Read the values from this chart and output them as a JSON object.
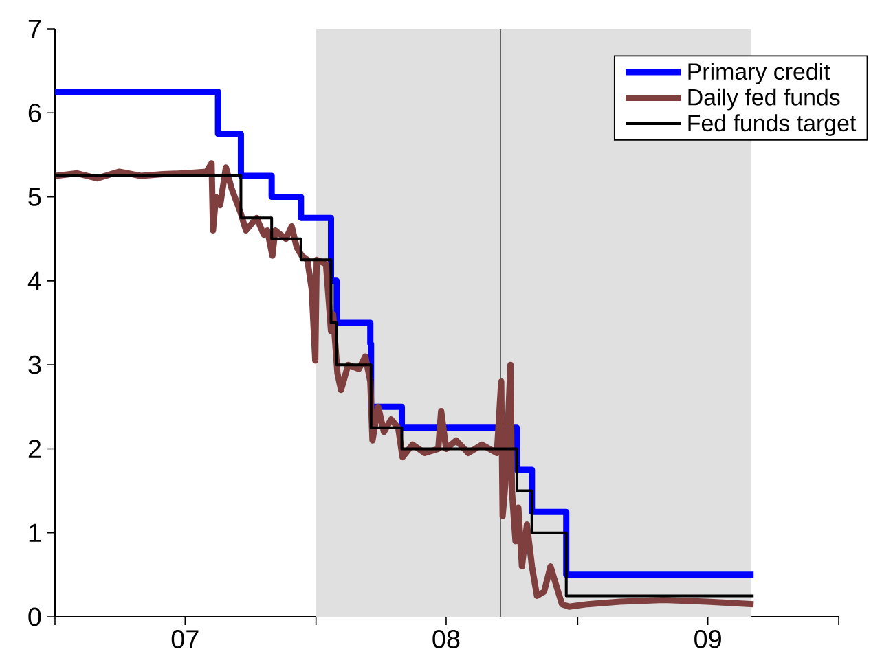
{
  "chart_data": {
    "type": "step",
    "xlim": [
      "2007-01-01",
      "2010-01-01"
    ],
    "xticks": [
      {
        "value": "2007-01-01",
        "label": null
      },
      {
        "value": "2007-07-02",
        "label": "07"
      },
      {
        "value": "2008-01-01",
        "label": null
      },
      {
        "value": "2008-07-01",
        "label": "08"
      },
      {
        "value": "2009-01-01",
        "label": null
      },
      {
        "value": "2009-07-02",
        "label": "09"
      },
      {
        "value": "2010-01-01",
        "label": null
      }
    ],
    "ylim": [
      0,
      7
    ],
    "yticks": [
      0,
      1,
      2,
      3,
      4,
      5,
      6,
      7
    ],
    "grid": false,
    "legend": "top right",
    "bands": [
      {
        "axis": "x",
        "from": "2008-01-01",
        "to": "2009-09-01",
        "color": "#e0e0e0"
      }
    ],
    "ref_lines": [
      {
        "axis": "x",
        "value": "2008-09-15",
        "color": "#555555"
      }
    ],
    "series": [
      {
        "name": "Primary credit",
        "color": "#0000ff",
        "x": [
          "2007-01-01",
          "2007-08-17",
          "2007-09-18",
          "2007-10-31",
          "2007-12-11",
          "2008-01-22",
          "2008-01-30",
          "2008-03-17",
          "2008-03-18",
          "2008-04-30",
          "2008-10-08",
          "2008-10-29",
          "2008-12-16",
          "2009-09-04"
        ],
        "values": [
          6.25,
          5.75,
          5.25,
          5.0,
          4.75,
          4.0,
          3.5,
          3.25,
          2.5,
          2.25,
          1.75,
          1.25,
          0.5,
          0.5
        ]
      },
      {
        "name": "Daily fed funds",
        "color": "#7f3f3f",
        "type": "line",
        "x": [
          "2007-01-02",
          "2007-02-01",
          "2007-03-01",
          "2007-04-01",
          "2007-05-01",
          "2007-06-01",
          "2007-07-01",
          "2007-08-01",
          "2007-08-08",
          "2007-08-10",
          "2007-08-14",
          "2007-08-20",
          "2007-08-28",
          "2007-09-05",
          "2007-09-18",
          "2007-09-25",
          "2007-10-10",
          "2007-10-20",
          "2007-10-25",
          "2007-11-01",
          "2007-11-05",
          "2007-11-20",
          "2007-11-28",
          "2007-12-05",
          "2007-12-12",
          "2007-12-20",
          "2007-12-26",
          "2007-12-31",
          "2008-01-02",
          "2008-01-15",
          "2008-01-22",
          "2008-01-25",
          "2008-01-31",
          "2008-02-05",
          "2008-02-15",
          "2008-03-01",
          "2008-03-10",
          "2008-03-17",
          "2008-03-20",
          "2008-03-28",
          "2008-04-05",
          "2008-04-15",
          "2008-04-25",
          "2008-05-01",
          "2008-05-15",
          "2008-06-01",
          "2008-06-20",
          "2008-06-24",
          "2008-07-01",
          "2008-07-15",
          "2008-08-01",
          "2008-08-20",
          "2008-09-10",
          "2008-09-16",
          "2008-09-18",
          "2008-09-22",
          "2008-09-29",
          "2008-10-01",
          "2008-10-06",
          "2008-10-10",
          "2008-10-15",
          "2008-10-22",
          "2008-10-29",
          "2008-11-05",
          "2008-11-15",
          "2008-11-24",
          "2008-12-01",
          "2008-12-10",
          "2008-12-20",
          "2009-01-15",
          "2009-03-01",
          "2009-05-01",
          "2009-07-01",
          "2009-09-04"
        ],
        "values": [
          5.25,
          5.28,
          5.22,
          5.3,
          5.25,
          5.27,
          5.28,
          5.3,
          5.4,
          4.6,
          5.0,
          4.9,
          5.35,
          5.1,
          4.8,
          4.6,
          4.75,
          4.55,
          4.6,
          4.3,
          4.6,
          4.5,
          4.65,
          4.4,
          4.3,
          4.25,
          3.9,
          3.05,
          4.25,
          4.2,
          3.4,
          3.6,
          2.9,
          2.7,
          3.0,
          2.95,
          3.1,
          2.8,
          2.1,
          2.5,
          2.2,
          2.35,
          2.25,
          1.9,
          2.05,
          1.95,
          2.0,
          2.45,
          2.0,
          2.1,
          1.95,
          2.05,
          1.95,
          2.8,
          1.2,
          1.6,
          3.0,
          1.5,
          0.9,
          1.3,
          0.6,
          1.1,
          0.6,
          0.25,
          0.3,
          0.6,
          0.4,
          0.15,
          0.12,
          0.15,
          0.18,
          0.2,
          0.18,
          0.15
        ]
      },
      {
        "name": "Fed funds target",
        "color": "#000000",
        "x": [
          "2007-01-01",
          "2007-09-18",
          "2007-10-31",
          "2007-12-11",
          "2008-01-22",
          "2008-01-30",
          "2008-03-18",
          "2008-04-30",
          "2008-10-08",
          "2008-10-29",
          "2008-12-16",
          "2009-09-04"
        ],
        "values": [
          5.25,
          4.75,
          4.5,
          4.25,
          3.5,
          3.0,
          2.25,
          2.0,
          1.5,
          1.0,
          0.25,
          0.25
        ]
      }
    ]
  }
}
